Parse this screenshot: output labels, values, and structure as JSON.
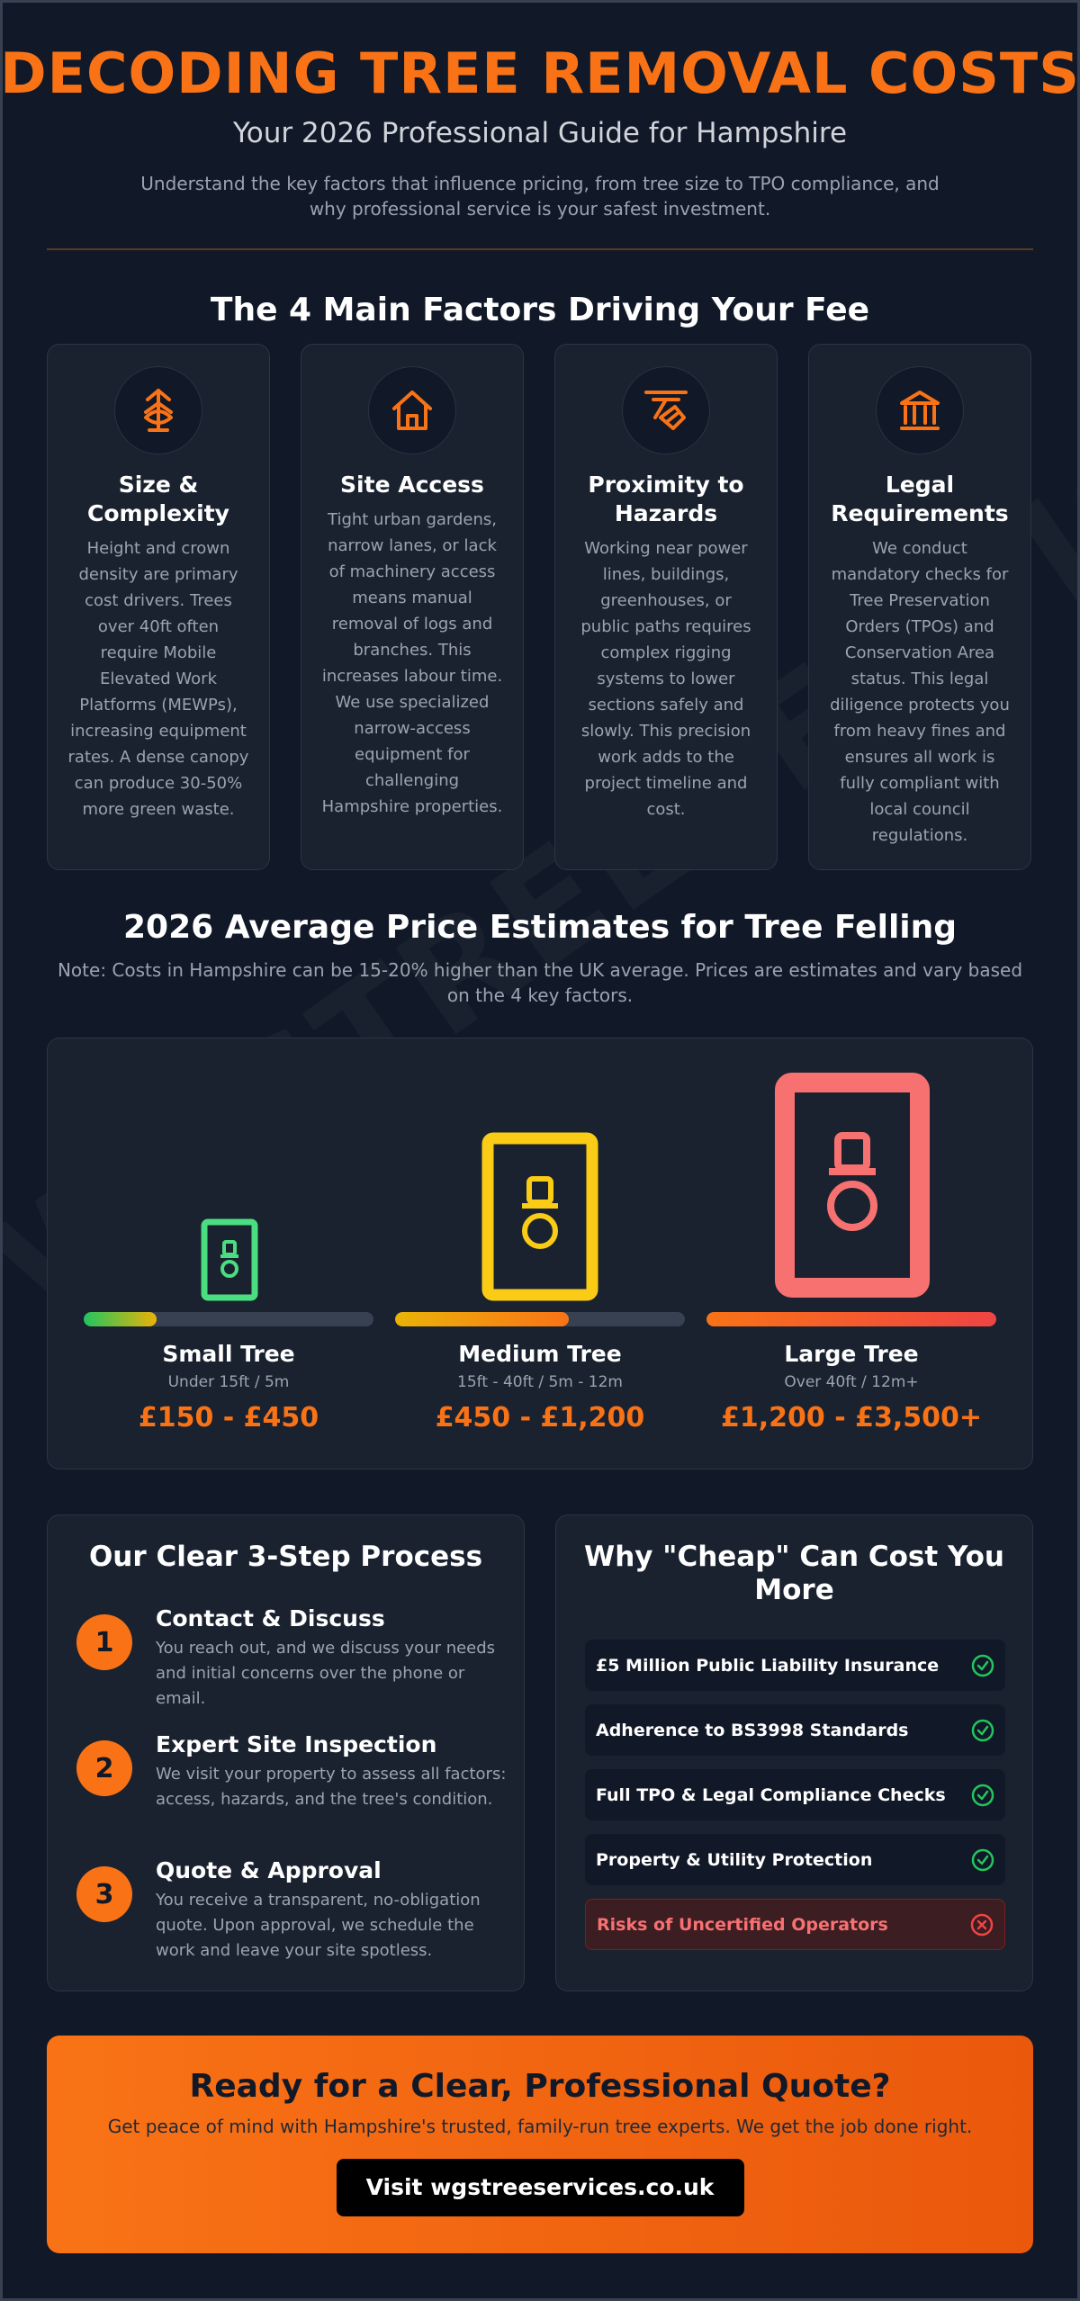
{
  "header": {
    "title": "DECODING TREE REMOVAL COSTS",
    "subtitle": "Your 2026 Professional Guide for Hampshire",
    "intro": "Understand the key factors that influence pricing, from tree size to TPO compliance, and why professional service is your safest investment."
  },
  "watermark": "WGSTREESERVICES",
  "factors": {
    "title": "The 4 Main Factors Driving Your Fee",
    "items": [
      {
        "title": "Size & Complexity",
        "icon": "tree-icon",
        "text": "Height and crown density are primary cost drivers. Trees over 40ft often require Mobile Elevated Work Platforms (MEWPs), increasing equipment rates. A dense canopy can produce 30-50% more green waste."
      },
      {
        "title": "Site Access",
        "icon": "house-icon",
        "text": "Tight urban gardens, narrow lanes, or lack of machinery access means manual removal of logs and branches. This increases labour time. We use specialized narrow-access equipment for challenging Hampshire properties."
      },
      {
        "title": "Proximity to Hazards",
        "icon": "power-line-icon",
        "text": "Working near power lines, buildings, greenhouses, or public paths requires complex rigging systems to lower sections safely and slowly. This precision work adds to the project timeline and cost."
      },
      {
        "title": "Legal Requirements",
        "icon": "bank-icon",
        "text": "We conduct mandatory checks for Tree Preservation Orders (TPOs) and Conservation Area status. This legal diligence protects you from heavy fines and ensures all work is fully compliant with local council regulations."
      }
    ]
  },
  "prices": {
    "title": "2026 Average Price Estimates for Tree Felling",
    "note": "Note: Costs in Hampshire can be 15-20% higher than the UK average. Prices are estimates and vary based on the 4 key factors.",
    "tiers": [
      {
        "name": "Small Tree",
        "size": "Under 15ft / 5m",
        "price": "£150 - £450",
        "level": 0.25,
        "color_start": "#22c55e",
        "color_end": "#eab308",
        "icon_color": "#4ade80"
      },
      {
        "name": "Medium Tree",
        "size": "15ft - 40ft / 5m - 12m",
        "price": "£450 - £1,200",
        "level": 0.6,
        "color_start": "#eab308",
        "color_end": "#f97316",
        "icon_color": "#facc15"
      },
      {
        "name": "Large Tree",
        "size": "Over 40ft / 12m+",
        "price": "£1,200 - £3,500+",
        "level": 1.0,
        "color_start": "#f97316",
        "color_end": "#ef4444",
        "icon_color": "#f87171"
      }
    ]
  },
  "process": {
    "title": "Our Clear 3-Step Process",
    "steps": [
      {
        "num": "1",
        "title": "Contact & Discuss",
        "text": "You reach out, and we discuss your needs and initial concerns over the phone or email."
      },
      {
        "num": "2",
        "title": "Expert Site Inspection",
        "text": "We visit your property to assess all factors: access, hazards, and the tree's condition."
      },
      {
        "num": "3",
        "title": "Quote & Approval",
        "text": "You receive a transparent, no-obligation quote. Upon approval, we schedule the work and leave your site spotless."
      }
    ]
  },
  "why": {
    "title": "Why \"Cheap\" Can Cost You More",
    "items": [
      {
        "label": "£5 Million Public Liability Insurance",
        "status": "check"
      },
      {
        "label": "Adherence to BS3998 Standards",
        "status": "check"
      },
      {
        "label": "Full TPO & Legal Compliance Checks",
        "status": "check"
      },
      {
        "label": "Property & Utility Protection",
        "status": "check"
      },
      {
        "label": "Risks of Uncertified Operators",
        "status": "cross"
      }
    ]
  },
  "cta": {
    "title": "Ready for a Clear, Professional Quote?",
    "text": "Get peace of mind with Hampshire's trusted, family-run tree experts. We get the job done right.",
    "button": "Visit wgstreeservices.co.uk"
  },
  "colors": {
    "accent": "#f97316",
    "background": "#111827",
    "card": "#1a2230",
    "check": "#22c55e",
    "cross": "#ef4444"
  }
}
